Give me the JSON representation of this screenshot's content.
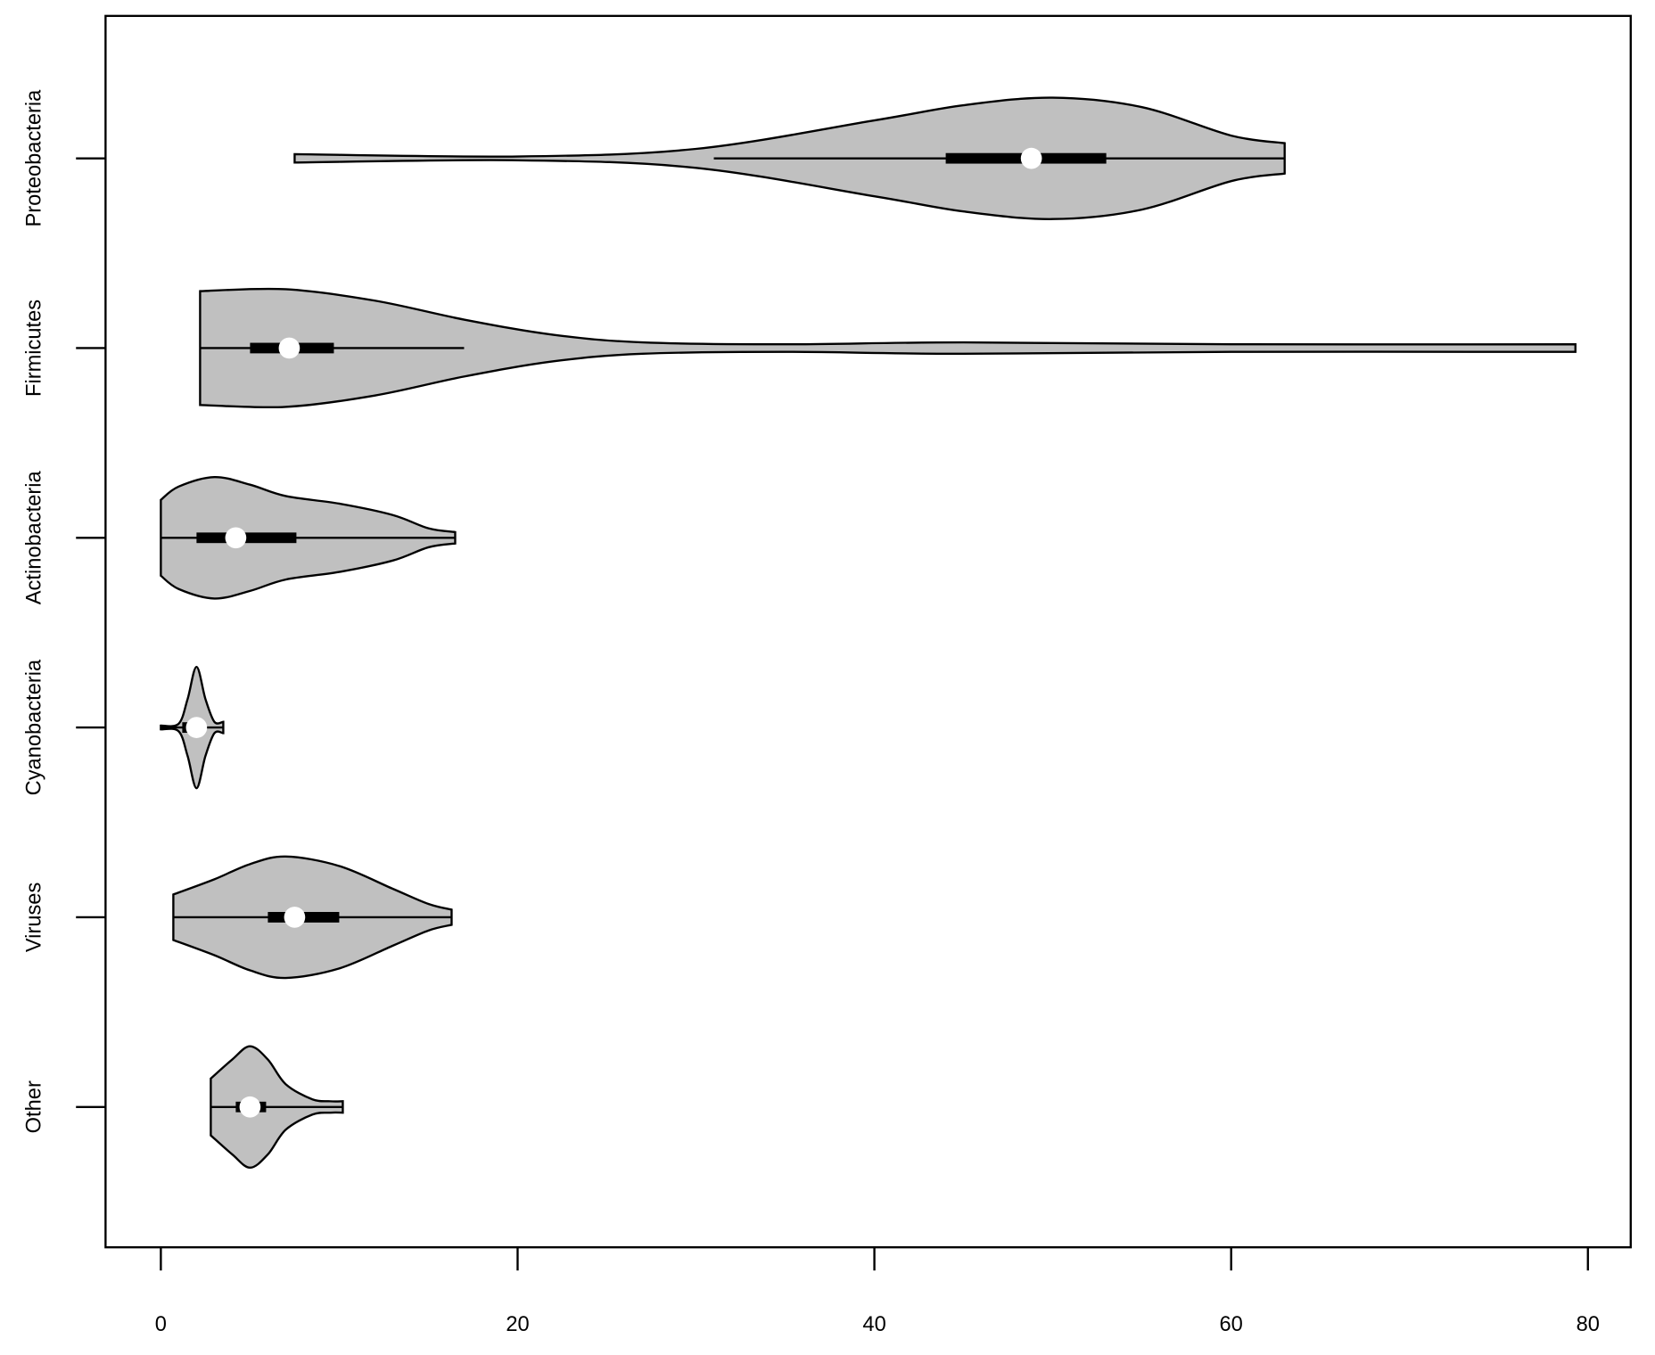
{
  "chart_data": {
    "type": "violin",
    "orientation": "horizontal",
    "fill": "#c0c0c0",
    "categories": [
      "Proteobacteria",
      "Firmicutes",
      "Actinobacteria",
      "Cyanobacteria",
      "Viruses",
      "Other"
    ],
    "xlim": [
      -3.1,
      82.4
    ],
    "xticks": [
      0,
      20,
      40,
      60,
      80
    ],
    "series": [
      {
        "density_at": [
          7.5,
          20,
          30,
          40,
          45,
          50,
          55,
          60,
          63
        ],
        "density_width": [
          0.022,
          0.01,
          0.05,
          0.2,
          0.28,
          0.32,
          0.27,
          0.12,
          0.08
        ],
        "whisker": [
          31,
          63
        ],
        "box": [
          44,
          53
        ],
        "median": 48.8
      },
      {
        "density_at": [
          2.2,
          7,
          12,
          17,
          22,
          27,
          35,
          45,
          60,
          79.3
        ],
        "density_width": [
          0.3,
          0.31,
          0.25,
          0.15,
          0.07,
          0.03,
          0.02,
          0.03,
          0.02,
          0.02
        ],
        "whisker": [
          2.2,
          17
        ],
        "box": [
          5,
          9.7
        ],
        "median": 7.2
      },
      {
        "density_at": [
          0,
          1,
          3,
          5,
          7,
          10,
          13,
          15,
          16.5
        ],
        "density_width": [
          0.2,
          0.27,
          0.32,
          0.28,
          0.22,
          0.18,
          0.12,
          0.05,
          0.03
        ],
        "whisker": [
          0,
          16.5
        ],
        "box": [
          2,
          7.6
        ],
        "median": 4.2
      },
      {
        "density_at": [
          0,
          1,
          1.5,
          2,
          2.5,
          3,
          3.5
        ],
        "density_width": [
          0.01,
          0.02,
          0.15,
          0.32,
          0.15,
          0.03,
          0.03
        ],
        "whisker": [
          0,
          3.5
        ],
        "box": [
          1.2,
          2.3
        ],
        "median": 2
      },
      {
        "density_at": [
          0.7,
          3,
          5,
          7,
          10,
          13,
          15,
          16.3
        ],
        "density_width": [
          0.12,
          0.2,
          0.28,
          0.32,
          0.27,
          0.15,
          0.07,
          0.04
        ],
        "whisker": [
          0.7,
          16.3
        ],
        "box": [
          6,
          10
        ],
        "median": 7.5
      },
      {
        "density_at": [
          2.8,
          4,
          5,
          6,
          7,
          8.5,
          9.5,
          10.2
        ],
        "density_width": [
          0.15,
          0.25,
          0.32,
          0.25,
          0.12,
          0.04,
          0.03,
          0.03
        ],
        "whisker": [
          2.8,
          10.2
        ],
        "box": [
          4.2,
          5.9
        ],
        "median": 5
      }
    ]
  }
}
